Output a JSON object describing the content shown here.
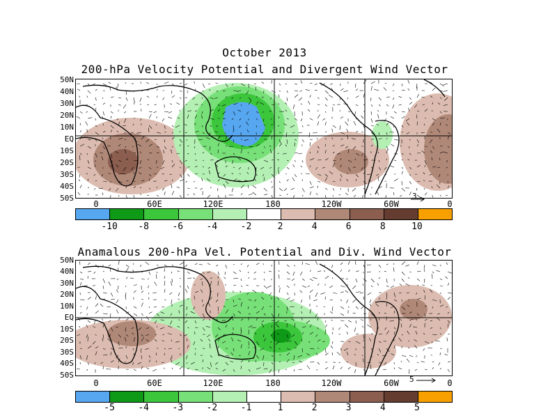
{
  "header": {
    "month": "October 2013",
    "title_top": "200-hPa Velocity Potential and Divergent Wind Vector",
    "title_bottom": "Anamalous 200-hPa Vel. Potential and Div. Wind Vector"
  },
  "lat_labels": [
    "50N",
    "40N",
    "30N",
    "20N",
    "10N",
    "EQ",
    "10S",
    "20S",
    "30S",
    "40S",
    "50S"
  ],
  "lon_labels": [
    "0",
    "60E",
    "120E",
    "180",
    "120W",
    "60W",
    "0"
  ],
  "top_panel": {
    "ref_vector": "3",
    "colorbar_labels": [
      "-10",
      "-8",
      "-6",
      "-4",
      "-2",
      "2",
      "4",
      "6",
      "8",
      "10"
    ],
    "colorbar_colors": [
      "#56a6f0",
      "#0e9a16",
      "#3cc63c",
      "#78e078",
      "#b4f0b4",
      "#ffffff",
      "#dcbcb0",
      "#b08878",
      "#8c5e50",
      "#643c30",
      "#f8a000"
    ]
  },
  "bottom_panel": {
    "ref_vector": "5",
    "colorbar_labels": [
      "-5",
      "-4",
      "-3",
      "-2",
      "-1",
      "1",
      "2",
      "3",
      "4",
      "5"
    ],
    "colorbar_colors": [
      "#56a6f0",
      "#0e9a16",
      "#3cc63c",
      "#78e078",
      "#b4f0b4",
      "#ffffff",
      "#dcbcb0",
      "#b08878",
      "#8c5e50",
      "#643c30",
      "#f8a000"
    ]
  }
}
